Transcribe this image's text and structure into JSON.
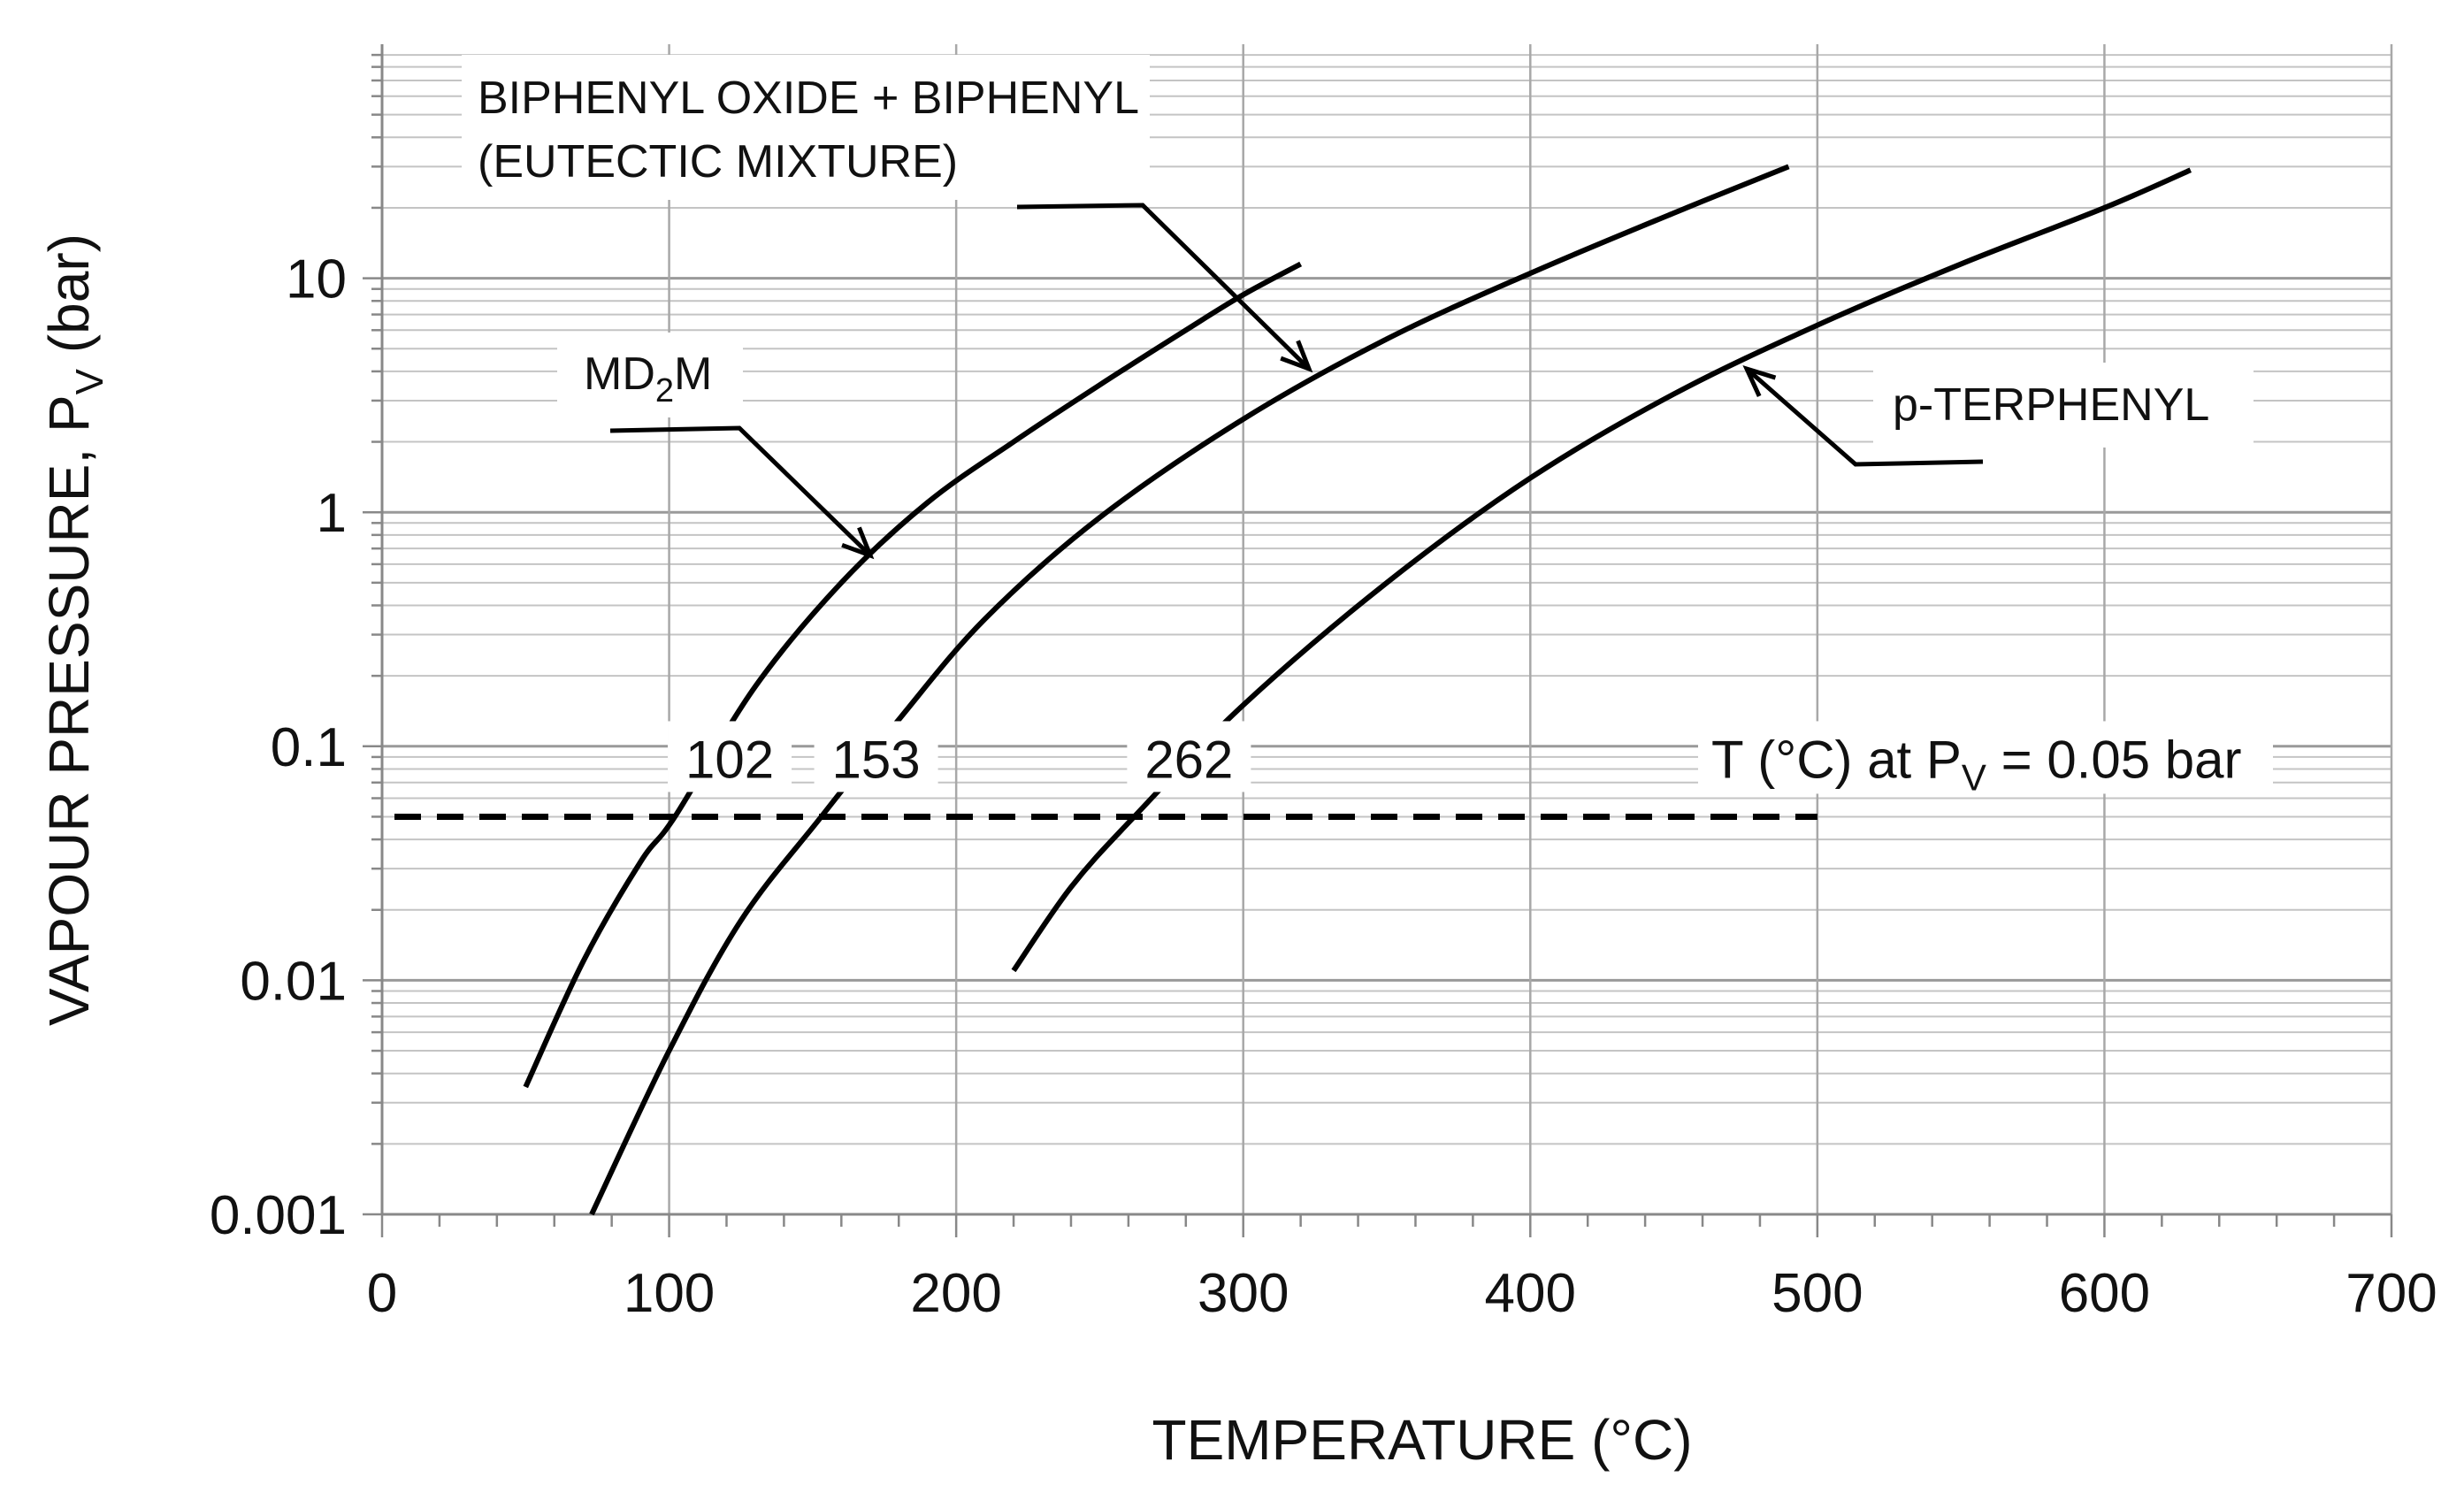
{
  "chart_data": {
    "type": "line",
    "title": "",
    "xlabel": "TEMPERATURE (°C)",
    "ylabel": "VAPOUR PRESSURE, P",
    "ylabel_sub": "V",
    "ylabel_unit": "(bar)",
    "xlim": [
      0,
      700
    ],
    "ylim": [
      0.001,
      100
    ],
    "yscale": "log",
    "grid": true,
    "x_ticks": [
      0,
      100,
      200,
      300,
      400,
      500,
      600,
      700
    ],
    "x_tick_labels": [
      "0",
      "100",
      "200",
      "300",
      "400",
      "500",
      "600",
      "700"
    ],
    "y_ticks": [
      0.001,
      0.01,
      0.1,
      1,
      10
    ],
    "y_tick_labels": [
      "0.001",
      "0.01",
      "0.1",
      "1",
      "10"
    ],
    "series": [
      {
        "name": "MD2M",
        "label_main": "MD",
        "label_sub": "2",
        "label_tail": "M",
        "x": [
          50,
          70,
          90,
          102,
          130,
          160,
          190,
          220,
          250,
          280,
          300,
          320
        ],
        "y": [
          0.0035,
          0.012,
          0.032,
          0.05,
          0.18,
          0.5,
          1.1,
          2.0,
          3.5,
          6.0,
          8.5,
          11.5
        ]
      },
      {
        "name": "BIPHENYL OXIDE + BIPHENYL (EUTECTIC MIXTURE)",
        "label_line1": "BIPHENYL OXIDE + BIPHENYL",
        "label_line2": "(EUTECTIC MIXTURE)",
        "x": [
          73,
          100,
          125,
          153,
          180,
          210,
          250,
          300,
          350,
          400,
          450,
          490
        ],
        "y": [
          0.001,
          0.005,
          0.018,
          0.05,
          0.13,
          0.35,
          0.95,
          2.5,
          5.5,
          10.5,
          19,
          30
        ]
      },
      {
        "name": "p-TERPHENYL",
        "x": [
          220,
          240,
          262,
          300,
          350,
          400,
          450,
          500,
          550,
          600,
          630
        ],
        "y": [
          0.011,
          0.025,
          0.05,
          0.15,
          0.5,
          1.4,
          3.2,
          6.3,
          11.5,
          20,
          29
        ]
      }
    ],
    "reference_line": {
      "y": 0.05,
      "x_start": 0,
      "x_end": 500,
      "style": "dashed",
      "label_main": "T (°C) at P",
      "label_sub": "V",
      "label_tail": " = 0.05 bar"
    },
    "annotations": [
      {
        "text": "102",
        "x": 102
      },
      {
        "text": "153",
        "x": 153
      },
      {
        "text": "262",
        "x": 262
      }
    ]
  }
}
